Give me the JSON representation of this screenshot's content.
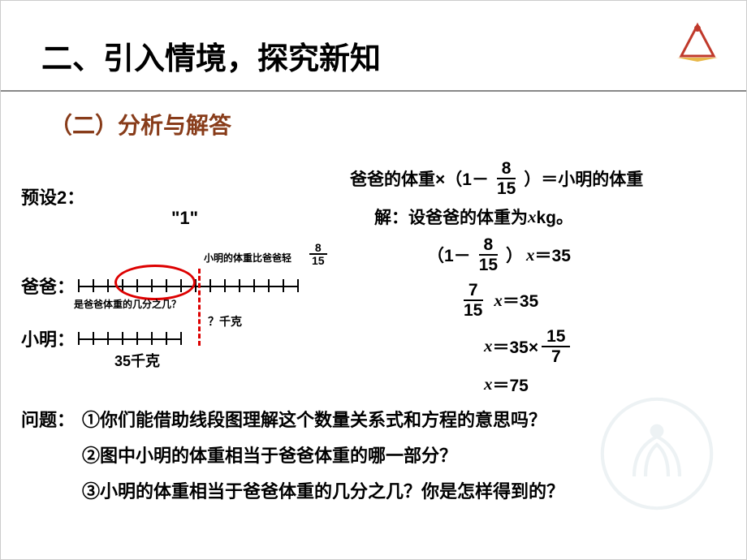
{
  "title": "二、引入情境，探究新知",
  "subtitle": "（二）分析与解答",
  "preset": "预设2：",
  "unit_label": "\"1\"",
  "diagram": {
    "dad_label": "爸爸：",
    "ming_label": "小明：",
    "note_light": "小明的体重比爸爸轻",
    "note_frac_n": "8",
    "note_frac_d": "15",
    "note_fraction_q": "是爸爸体重的几分之几？",
    "qmark_kg": "？千克",
    "weight_35": "35千克",
    "dad_ticks": 15,
    "ming_ticks": 7,
    "tick_spacing": 18,
    "ellipse_color": "#d00",
    "dash_color": "#d00"
  },
  "equations": {
    "top": {
      "pre": "爸爸的体重×（1－",
      "frac_n": "8",
      "frac_d": "15",
      "post": "）＝小明的体重"
    },
    "let": "解：设爸爸的体重为",
    "let_var": "x",
    "let_unit": " kg。",
    "s1_pre": "（1－",
    "s1_n": "8",
    "s1_d": "15",
    "s1_post": "）",
    "s1_var": "x",
    "s1_eq": "＝35",
    "s2_n": "7",
    "s2_d": "15",
    "s2_var": "x",
    "s2_eq": "＝35",
    "s3_var": "x",
    "s3_eq": "＝35×",
    "s3_n": "15",
    "s3_d": "7",
    "s4_var": "x",
    "s4_eq": "＝75"
  },
  "questions": {
    "label": "问题：",
    "q1": "①你们能借助线段图理解这个数量关系式和方程的意思吗？",
    "q2": "②图中小明的体重相当于爸爸体重的哪一部分？",
    "q3": "③小明的体重相当于爸爸体重的几分之几？你是怎样得到的？"
  },
  "colors": {
    "subtitle": "#883c1a",
    "text": "#000000",
    "red": "#d00000"
  }
}
